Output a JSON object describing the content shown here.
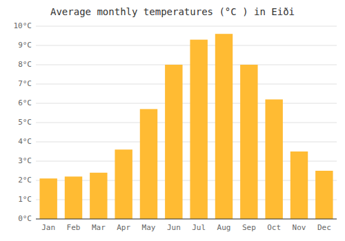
{
  "chart_data": {
    "type": "bar",
    "title": "Average monthly temperatures (°C ) in Eiði",
    "categories": [
      "Jan",
      "Feb",
      "Mar",
      "Apr",
      "May",
      "Jun",
      "Jul",
      "Aug",
      "Sep",
      "Oct",
      "Nov",
      "Dec"
    ],
    "values": [
      2.1,
      2.2,
      2.4,
      3.6,
      5.7,
      8.0,
      9.3,
      9.6,
      8.0,
      6.2,
      3.5,
      2.5
    ],
    "color": "#FFBB33",
    "ylim": [
      0,
      10
    ],
    "yticks": [
      {
        "value": 0,
        "label": "0°C"
      },
      {
        "value": 1,
        "label": "1°C"
      },
      {
        "value": 2,
        "label": "2°C"
      },
      {
        "value": 3,
        "label": "3°C"
      },
      {
        "value": 4,
        "label": "4°C"
      },
      {
        "value": 5,
        "label": "5°C"
      },
      {
        "value": 6,
        "label": "6°C"
      },
      {
        "value": 7,
        "label": "7°C"
      },
      {
        "value": 8,
        "label": "8°C"
      },
      {
        "value": 9,
        "label": "9°C"
      },
      {
        "value": 10,
        "label": "10°C"
      }
    ],
    "grid": true
  }
}
